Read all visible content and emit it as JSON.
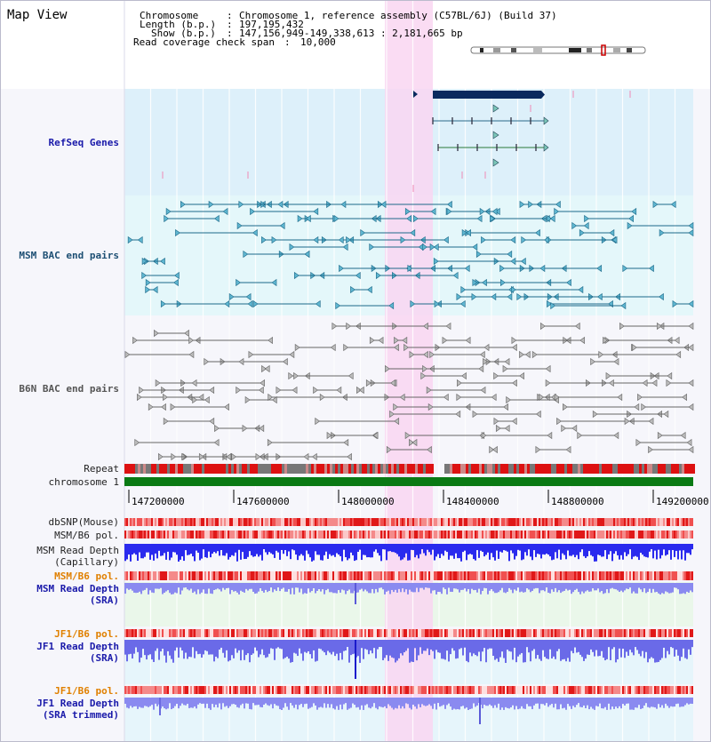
{
  "view_title": "Map View",
  "header": {
    "chromosome_label": "Chromosome",
    "chromosome_value": "Chromosome 1, reference assembly (C57BL/6J) (Build 37)",
    "length_label": "Length (b.p.)",
    "length_value": "197,195,432",
    "show_label": "Show (b.p.)",
    "show_value": "147,156,949-149,338,613 : 2,181,665 bp",
    "coverage_label": "Read coverage check span",
    "coverage_value": "10,000"
  },
  "tracks": {
    "refseq": "RefSeq Genes",
    "msm_bac": "MSM BAC end pairs",
    "b6n_bac": "B6N BAC end pairs",
    "repeat": "Repeat",
    "chromosome": "chromosome 1",
    "dbsnp": "dbSNP(Mouse)",
    "msm_b6_pol_1": "MSM/B6 pol.",
    "msm_depth_cap_1": "MSM Read Depth",
    "msm_depth_cap_2": "(Capillary)",
    "msm_b6_pol_2": "MSM/B6 pol.",
    "msm_depth_sra_1": "MSM Read Depth",
    "msm_depth_sra_2": "(SRA)",
    "jf1_b6_pol_1": "JF1/B6 pol.",
    "jf1_depth_sra_1": "JF1 Read Depth",
    "jf1_depth_sra_2": "(SRA)",
    "jf1_b6_pol_2": "JF1/B6 pol.",
    "jf1_depth_trim_1": "JF1 Read Depth",
    "jf1_depth_trim_2": "(SRA trimmed)"
  },
  "axis_ticks": [
    "147200000",
    "147600000",
    "148000000",
    "148400000",
    "148800000",
    "149200000"
  ],
  "colors": {
    "refseq_bg": "#ddf0fa",
    "msm_bg": "#e4f7fa",
    "highlight": "#f9d6f1",
    "chromosome_bar": "#0a7a14",
    "gene_dark": "#0a2a5e",
    "repeat_red": "#dd1111"
  }
}
